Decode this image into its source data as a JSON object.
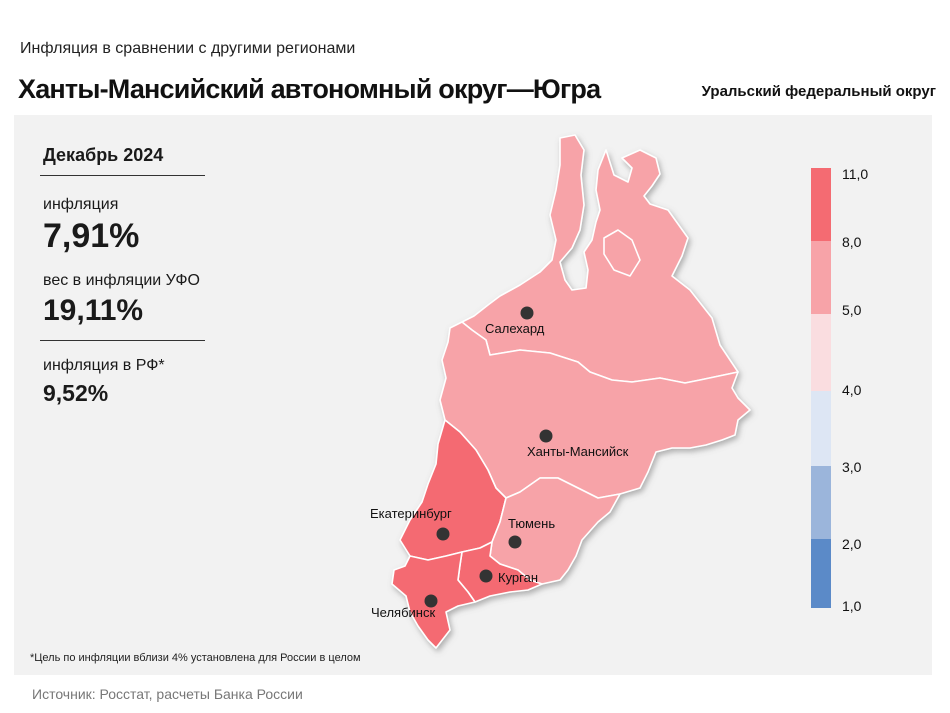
{
  "header": {
    "subtitle": "Инфляция в сравнении с другими регионами",
    "title": "Ханты-Мансийский автономный округ—Югра",
    "district": "Уральский федеральный округ"
  },
  "stats": {
    "period": "Декабрь 2024",
    "inflation_label": "инфляция",
    "inflation_value": "7,91%",
    "weight_label": "вес в инфляции УФО",
    "weight_value": "19,11%",
    "rf_label": "инфляция в РФ*",
    "rf_value": "9,52%"
  },
  "cities": {
    "salekhard": "Салехард",
    "khanty_mansiysk": "Ханты-Мансийск",
    "ekaterinburg": "Екатеринбург",
    "tyumen": "Тюмень",
    "kurgan": "Курган",
    "chelyabinsk": "Челябинск"
  },
  "legend": {
    "ticks": [
      "11,0",
      "8,0",
      "5,0",
      "4,0",
      "3,0",
      "2,0",
      "1,0"
    ],
    "colors": [
      "#f46b72",
      "#f7a3a8",
      "#fadde0",
      "#dde6f4",
      "#9bb5db",
      "#5b8ac8"
    ]
  },
  "region_colors": {
    "high": "#f46b72",
    "mid": "#f7a3a8"
  },
  "footnote": "*Цель по инфляции вблизи 4% установлена для России в целом",
  "source": "Источник: Росстат, расчеты Банка России"
}
